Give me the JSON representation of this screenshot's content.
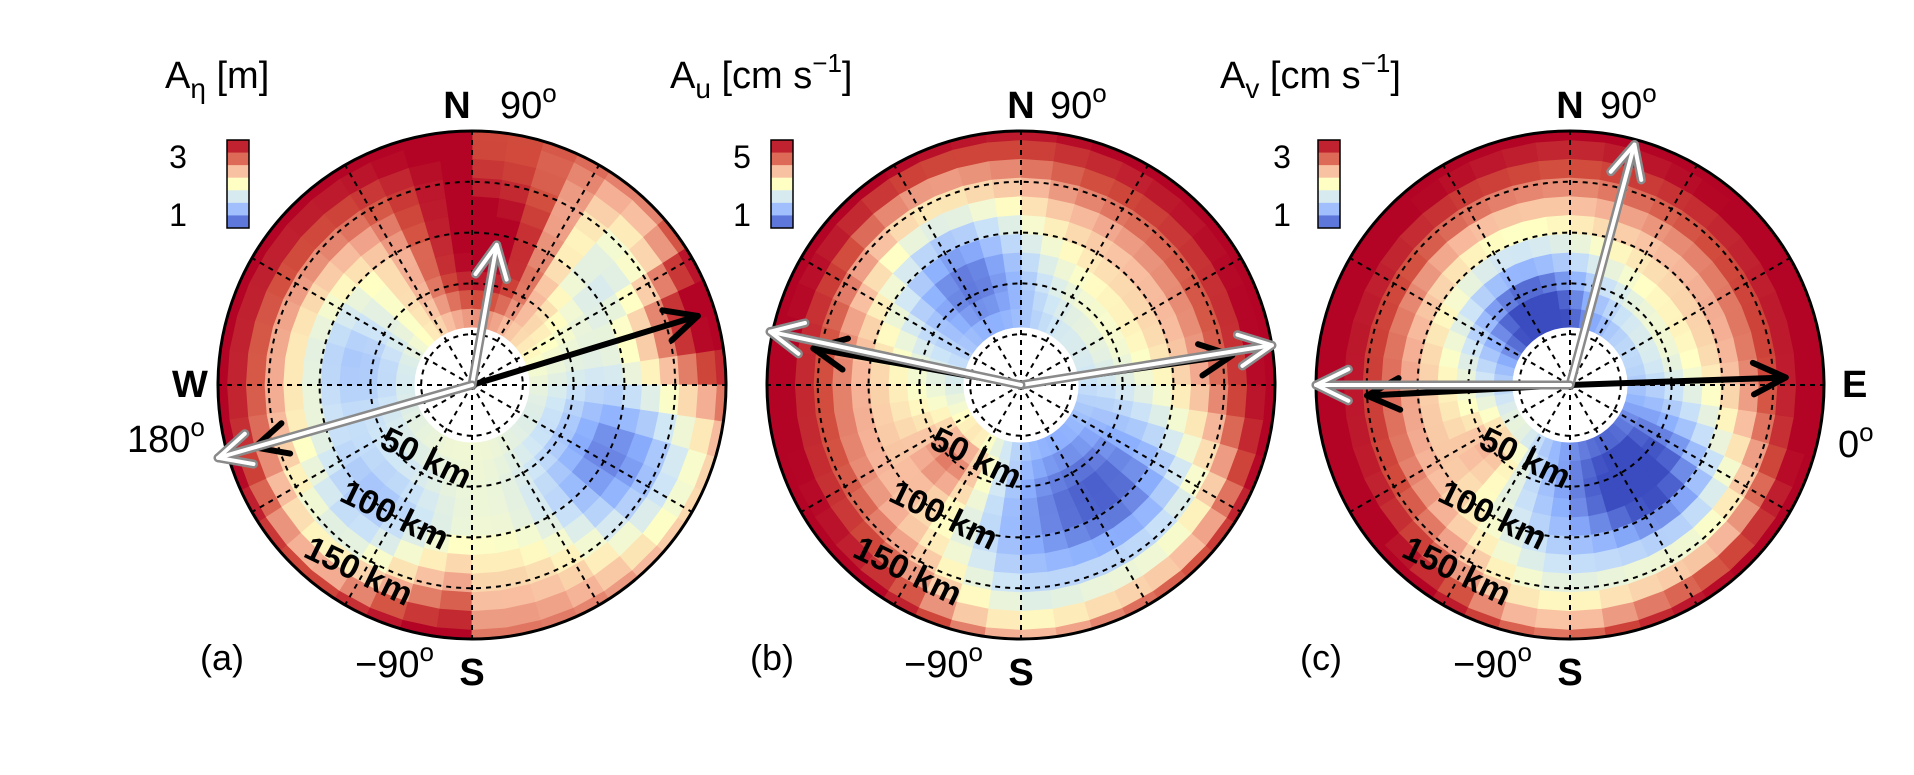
{
  "chart_data": {
    "type": "polar-heatmap",
    "colormap": [
      "#3b4cc0",
      "#8db0fe",
      "#cfe6f7",
      "#ffffc4",
      "#f7b89c",
      "#d14b3c",
      "#b40426"
    ],
    "compass": {
      "north": "N",
      "south": "S",
      "west": "W",
      "east": "E"
    },
    "angle_labels": {
      "north": "90",
      "south": "−90",
      "west": "180",
      "east": "0",
      "degree_symbol": "o"
    },
    "radial_labels": [
      "50 km",
      "100 km",
      "150 km"
    ],
    "radial_grid_km": [
      50,
      100,
      150,
      200,
      250
    ],
    "angular_grid_deg": [
      0,
      30,
      60,
      90,
      120,
      150,
      180,
      210,
      240,
      270,
      300,
      330
    ],
    "panels": [
      {
        "label": "(a)",
        "colorbar": {
          "title": "A",
          "subscript": "η",
          "unit": " [m]",
          "ticks": [
            "3",
            "1"
          ],
          "tick_values": [
            3,
            1
          ],
          "range": [
            0.5,
            3.5
          ]
        },
        "arrows": [
          {
            "color": "black",
            "angle_deg": 17,
            "length": 0.93
          },
          {
            "color": "black",
            "angle_deg": 196,
            "length": 0.89
          },
          {
            "color": "white",
            "angle_deg": 80,
            "length": 0.56
          },
          {
            "color": "white",
            "angle_deg": 196,
            "length": 1.04
          }
        ]
      },
      {
        "label": "(b)",
        "colorbar": {
          "title": "A",
          "subscript": "u",
          "unit": " [cm s",
          "unit_exp": "−1",
          "unit_tail": "]",
          "ticks": [
            "5",
            "1"
          ],
          "tick_values": [
            5,
            1
          ],
          "range": [
            0.3,
            5.7
          ]
        },
        "arrows": [
          {
            "color": "black",
            "angle_deg": 8,
            "length": 0.84
          },
          {
            "color": "black",
            "angle_deg": 170,
            "length": 0.83
          },
          {
            "color": "white",
            "angle_deg": 9,
            "length": 1.0
          },
          {
            "color": "white",
            "angle_deg": 168,
            "length": 1.01
          }
        ]
      },
      {
        "label": "(c)",
        "colorbar": {
          "title": "A",
          "subscript": "v",
          "unit": " [cm s",
          "unit_exp": "−1",
          "unit_tail": "]",
          "ticks": [
            "3",
            "1"
          ],
          "tick_values": [
            3,
            1
          ],
          "range": [
            0.5,
            3.5
          ]
        },
        "arrows": [
          {
            "color": "black",
            "angle_deg": 2,
            "length": 0.85
          },
          {
            "color": "black",
            "angle_deg": 183,
            "length": 0.8
          },
          {
            "color": "white",
            "angle_deg": 75,
            "length": 0.98
          },
          {
            "color": "white",
            "angle_deg": 180,
            "length": 1.0
          }
        ]
      }
    ]
  }
}
